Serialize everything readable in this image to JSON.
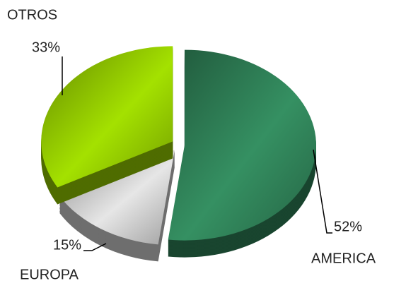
{
  "chart_data": {
    "type": "pie",
    "categories": [
      "AMERICA",
      "EUROPA",
      "OTROS"
    ],
    "values": [
      52,
      15,
      33
    ],
    "value_labels": [
      "52%",
      "15%",
      "33%"
    ],
    "colors": [
      "#2e7d55",
      "#c8c8c8",
      "#8fc400"
    ]
  }
}
